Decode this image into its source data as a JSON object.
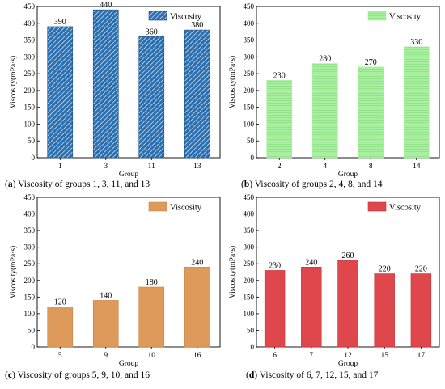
{
  "chart_data": [
    {
      "type": "bar",
      "panel": "a",
      "caption_letter": "a",
      "caption_text": " Viscosity of groups 1, 3, 11, and 13",
      "categories": [
        "1",
        "3",
        "11",
        "13"
      ],
      "values": [
        390,
        440,
        360,
        380
      ],
      "data_labels": [
        "390",
        "440",
        "360",
        "380"
      ],
      "series_name": "Viscosity",
      "xlabel": "Group",
      "ylabel": "Viscosity(mPa·s)",
      "ylim": [
        0,
        450
      ],
      "yticks": [
        "0",
        "50",
        "100",
        "150",
        "200",
        "250",
        "300",
        "350",
        "400",
        "450"
      ],
      "legend_position": "top-right",
      "grid": false,
      "fill": "#2a6fb0",
      "pattern": "diagonal-hatch",
      "hatch_color": "#ffffff",
      "stroke": "#1a4f82"
    },
    {
      "type": "bar",
      "panel": "b",
      "caption_letter": "b",
      "caption_text": " Viscosity of groups 2, 4, 8, and 14",
      "categories": [
        "2",
        "4",
        "8",
        "14"
      ],
      "values": [
        230,
        280,
        270,
        330
      ],
      "data_labels": [
        "230",
        "280",
        "270",
        "330"
      ],
      "series_name": "Viscosity",
      "xlabel": "Group",
      "ylabel": "Viscosity(mPa·s)",
      "ylim": [
        0,
        450
      ],
      "yticks": [
        "0",
        "50",
        "100",
        "150",
        "200",
        "250",
        "300",
        "350",
        "400",
        "450"
      ],
      "legend_position": "top-right",
      "grid": false,
      "fill": "#a8f0a0",
      "pattern": "horizontal-lines",
      "hatch_color": "#8ee086",
      "stroke": "#a8f0a0"
    },
    {
      "type": "bar",
      "panel": "c",
      "caption_letter": "c",
      "caption_text": " Viscosity of groups 5, 9, 10, and 16",
      "categories": [
        "5",
        "9",
        "10",
        "16"
      ],
      "values": [
        120,
        140,
        180,
        240
      ],
      "data_labels": [
        "120",
        "140",
        "180",
        "240"
      ],
      "series_name": "Viscosity",
      "xlabel": "Group",
      "ylabel": "Viscosity(mPa·s)",
      "ylim": [
        0,
        450
      ],
      "yticks": [
        "0",
        "50",
        "100",
        "150",
        "200",
        "250",
        "300",
        "350",
        "400",
        "450"
      ],
      "legend_position": "top-right",
      "grid": false,
      "fill": "#de9a5a",
      "pattern": "solid",
      "hatch_color": "#de9a5a",
      "stroke": "#c98545"
    },
    {
      "type": "bar",
      "panel": "d",
      "caption_letter": "d",
      "caption_text": " Viscosity of 6, 7, 12, 15, and 17",
      "categories": [
        "6",
        "7",
        "12",
        "15",
        "17"
      ],
      "values": [
        230,
        240,
        260,
        220,
        220
      ],
      "data_labels": [
        "230",
        "240",
        "260",
        "220",
        "220"
      ],
      "series_name": "Viscosity",
      "xlabel": "Group",
      "ylabel": "Viscosity(mPa·s)",
      "ylim": [
        0,
        450
      ],
      "yticks": [
        "0",
        "50",
        "100",
        "150",
        "200",
        "250",
        "300",
        "350",
        "400",
        "450"
      ],
      "legend_position": "top-right",
      "grid": false,
      "fill": "#e0474c",
      "pattern": "solid",
      "hatch_color": "#e0474c",
      "stroke": "#c33338"
    }
  ]
}
